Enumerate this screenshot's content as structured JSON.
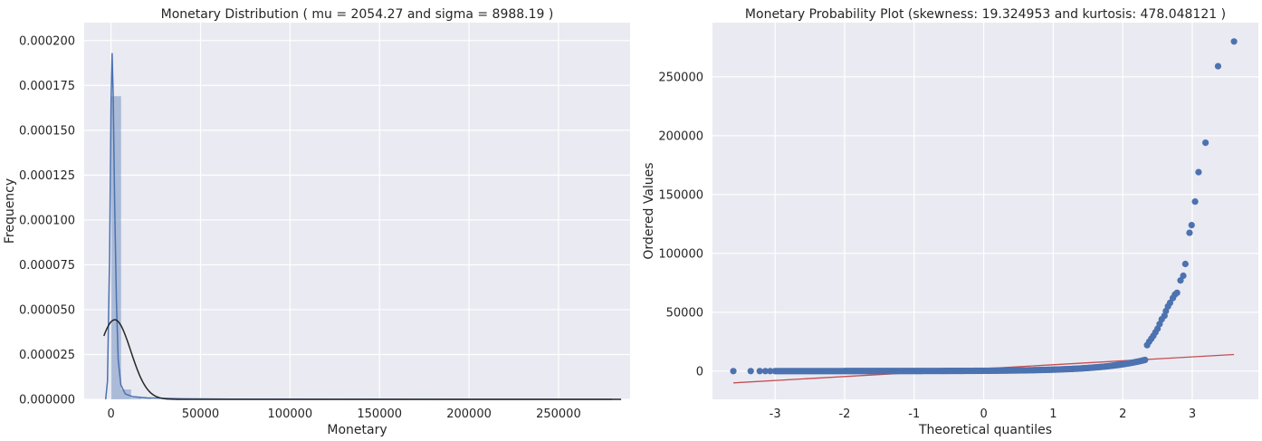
{
  "chart_data": [
    {
      "type": "histogram",
      "title": "Monetary Distribution ( mu = 2054.27 and sigma = 8988.19 )",
      "xlabel": "Monetary",
      "ylabel": "Frequency",
      "xlim": [
        -15000,
        290000
      ],
      "ylim": [
        0,
        0.00021
      ],
      "xticks": [
        {
          "value": 0,
          "label": "0"
        },
        {
          "value": 50000,
          "label": "50000"
        },
        {
          "value": 100000,
          "label": "100000"
        },
        {
          "value": 150000,
          "label": "150000"
        },
        {
          "value": 200000,
          "label": "200000"
        },
        {
          "value": 250000,
          "label": "250000"
        }
      ],
      "yticks": [
        {
          "value": 0,
          "label": "0.000000"
        },
        {
          "value": 2.5e-05,
          "label": "0.000025"
        },
        {
          "value": 5e-05,
          "label": "0.000050"
        },
        {
          "value": 7.5e-05,
          "label": "0.000075"
        },
        {
          "value": 0.0001,
          "label": "0.000100"
        },
        {
          "value": 0.000125,
          "label": "0.000125"
        },
        {
          "value": 0.00015,
          "label": "0.000150"
        },
        {
          "value": 0.000175,
          "label": "0.000175"
        },
        {
          "value": 0.0002,
          "label": "0.000200"
        }
      ],
      "bins": [
        {
          "x0": 0,
          "x1": 5600,
          "y": 0.000169
        },
        {
          "x0": 5600,
          "x1": 11200,
          "y": 5.5e-06
        },
        {
          "x0": 11200,
          "x1": 16800,
          "y": 8e-07
        },
        {
          "x0": 16800,
          "x1": 22400,
          "y": 3e-07
        }
      ],
      "kde": [
        [
          -3000,
          0.0
        ],
        [
          -2000,
          1e-05
        ],
        [
          -800,
          8e-05
        ],
        [
          0,
          0.000165
        ],
        [
          600,
          0.000193
        ],
        [
          1200,
          0.00017
        ],
        [
          2000,
          0.00011
        ],
        [
          3000,
          5.5e-05
        ],
        [
          4000,
          2.2e-05
        ],
        [
          5500,
          8e-06
        ],
        [
          8000,
          3e-06
        ],
        [
          12000,
          1.5e-06
        ],
        [
          20000,
          8e-07
        ],
        [
          40000,
          3e-07
        ],
        [
          70000,
          1e-07
        ],
        [
          120000,
          5e-08
        ],
        [
          200000,
          2e-08
        ],
        [
          280000,
          0.0
        ]
      ],
      "normal_fit": {
        "mu": 2054.27,
        "sigma": 8988.19,
        "x_range": [
          -4000,
          285000
        ]
      },
      "colors": {
        "hist": "#4c72b0",
        "kde": "#4c72b0",
        "normal": "#262626"
      },
      "grid": true
    },
    {
      "type": "scatter",
      "title": "Monetary Probability Plot (skewness: 19.324953 and kurtosis: 478.048121 )",
      "xlabel": "Theoretical quantiles",
      "ylabel": "Ordered Values",
      "xlim": [
        -3.9,
        3.95
      ],
      "ylim": [
        -24000,
        296000
      ],
      "xticks": [
        {
          "value": -3,
          "label": "-3"
        },
        {
          "value": -2,
          "label": "-2"
        },
        {
          "value": -1,
          "label": "-1"
        },
        {
          "value": 0,
          "label": "0"
        },
        {
          "value": 1,
          "label": "1"
        },
        {
          "value": 2,
          "label": "2"
        },
        {
          "value": 3,
          "label": "3"
        }
      ],
      "yticks": [
        {
          "value": 0,
          "label": "0"
        },
        {
          "value": 50000,
          "label": "50000"
        },
        {
          "value": 100000,
          "label": "100000"
        },
        {
          "value": 150000,
          "label": "150000"
        },
        {
          "value": 200000,
          "label": "200000"
        },
        {
          "value": 250000,
          "label": "250000"
        }
      ],
      "fit_line": {
        "x": [
          -3.6,
          3.6
        ],
        "y": [
          -10000,
          14100
        ]
      },
      "tail_points": [
        [
          2.35,
          22000
        ],
        [
          2.38,
          25000
        ],
        [
          2.41,
          27500
        ],
        [
          2.44,
          30000
        ],
        [
          2.47,
          33000
        ],
        [
          2.5,
          36000
        ],
        [
          2.53,
          40000
        ],
        [
          2.56,
          44000
        ],
        [
          2.6,
          47000
        ],
        [
          2.62,
          51000
        ],
        [
          2.65,
          55000
        ],
        [
          2.68,
          58000
        ],
        [
          2.72,
          62000
        ],
        [
          2.75,
          65000
        ],
        [
          2.78,
          66500
        ],
        [
          2.83,
          77000
        ],
        [
          2.87,
          81000
        ],
        [
          2.9,
          91000
        ],
        [
          2.96,
          117500
        ],
        [
          2.99,
          124000
        ],
        [
          3.04,
          144000
        ],
        [
          3.09,
          169000
        ],
        [
          3.19,
          194000
        ],
        [
          3.37,
          259000
        ],
        [
          3.6,
          280000
        ]
      ],
      "colors": {
        "points": "#4c72b0",
        "line": "#c44e52"
      },
      "grid": true
    }
  ]
}
